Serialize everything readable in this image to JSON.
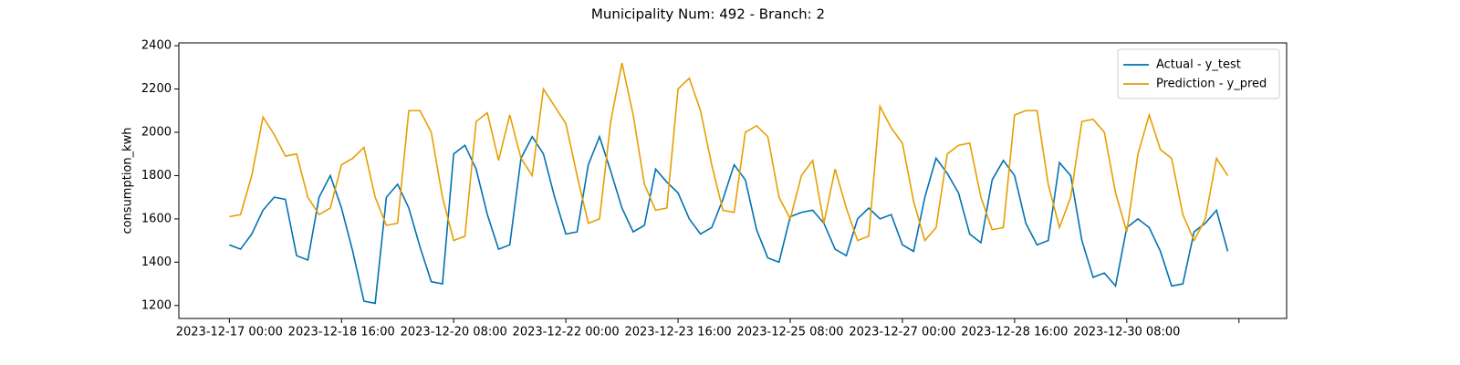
{
  "chart_data": {
    "type": "line",
    "title": "Municipality Num: 492 - Branch: 2",
    "ylabel": "consumption_kwh",
    "x": [
      "2023-12-17 00:00",
      "2023-12-17 04:00",
      "2023-12-17 08:00",
      "2023-12-17 12:00",
      "2023-12-17 16:00",
      "2023-12-17 20:00",
      "2023-12-18 00:00",
      "2023-12-18 04:00",
      "2023-12-18 08:00",
      "2023-12-18 12:00",
      "2023-12-18 16:00",
      "2023-12-18 20:00",
      "2023-12-19 00:00",
      "2023-12-19 04:00",
      "2023-12-19 08:00",
      "2023-12-19 12:00",
      "2023-12-19 16:00",
      "2023-12-19 20:00",
      "2023-12-20 00:00",
      "2023-12-20 04:00",
      "2023-12-20 08:00",
      "2023-12-20 12:00",
      "2023-12-20 16:00",
      "2023-12-20 20:00",
      "2023-12-21 00:00",
      "2023-12-21 04:00",
      "2023-12-21 08:00",
      "2023-12-21 12:00",
      "2023-12-21 16:00",
      "2023-12-21 20:00",
      "2023-12-22 00:00",
      "2023-12-22 04:00",
      "2023-12-22 08:00",
      "2023-12-22 12:00",
      "2023-12-22 16:00",
      "2023-12-22 20:00",
      "2023-12-23 00:00",
      "2023-12-23 04:00",
      "2023-12-23 08:00",
      "2023-12-23 12:00",
      "2023-12-23 16:00",
      "2023-12-23 20:00",
      "2023-12-24 00:00",
      "2023-12-24 04:00",
      "2023-12-24 08:00",
      "2023-12-24 12:00",
      "2023-12-24 16:00",
      "2023-12-24 20:00",
      "2023-12-25 00:00",
      "2023-12-25 04:00",
      "2023-12-25 08:00",
      "2023-12-25 12:00",
      "2023-12-25 16:00",
      "2023-12-25 20:00",
      "2023-12-26 00:00",
      "2023-12-26 04:00",
      "2023-12-26 08:00",
      "2023-12-26 12:00",
      "2023-12-26 16:00",
      "2023-12-26 20:00",
      "2023-12-27 00:00",
      "2023-12-27 04:00",
      "2023-12-27 08:00",
      "2023-12-27 12:00",
      "2023-12-27 16:00",
      "2023-12-27 20:00",
      "2023-12-28 00:00",
      "2023-12-28 04:00",
      "2023-12-28 08:00",
      "2023-12-28 12:00",
      "2023-12-28 16:00",
      "2023-12-28 20:00",
      "2023-12-29 00:00",
      "2023-12-29 04:00",
      "2023-12-29 08:00",
      "2023-12-29 12:00",
      "2023-12-29 16:00",
      "2023-12-29 20:00",
      "2023-12-30 00:00",
      "2023-12-30 04:00",
      "2023-12-30 08:00",
      "2023-12-30 12:00",
      "2023-12-30 16:00",
      "2023-12-30 20:00",
      "2023-12-31 00:00",
      "2023-12-31 04:00",
      "2023-12-31 08:00",
      "2023-12-31 12:00",
      "2023-12-31 16:00",
      "2023-12-31 20:00"
    ],
    "series": [
      {
        "name": "Actual - y_test",
        "color": "#0072b2",
        "values": [
          1480,
          1460,
          1530,
          1640,
          1700,
          1690,
          1430,
          1410,
          1700,
          1800,
          1650,
          1450,
          1220,
          1210,
          1700,
          1760,
          1650,
          1470,
          1310,
          1300,
          1900,
          1940,
          1830,
          1620,
          1460,
          1480,
          1880,
          1980,
          1900,
          1700,
          1530,
          1540,
          1850,
          1980,
          1820,
          1650,
          1540,
          1570,
          1830,
          1770,
          1720,
          1600,
          1530,
          1560,
          1690,
          1850,
          1780,
          1550,
          1420,
          1400,
          1610,
          1630,
          1640,
          1580,
          1460,
          1430,
          1600,
          1650,
          1600,
          1620,
          1480,
          1450,
          1700,
          1880,
          1810,
          1720,
          1530,
          1490,
          1780,
          1870,
          1800,
          1580,
          1480,
          1500,
          1860,
          1800,
          1500,
          1330,
          1350,
          1290,
          1560,
          1600,
          1560,
          1450,
          1290,
          1300,
          1540,
          1580,
          1640,
          1450
        ]
      },
      {
        "name": "Prediction - y_pred",
        "color": "#e69f00",
        "values": [
          1610,
          1620,
          1800,
          2070,
          1990,
          1890,
          1900,
          1700,
          1620,
          1650,
          1850,
          1880,
          1930,
          1700,
          1570,
          1580,
          2100,
          2100,
          2000,
          1700,
          1500,
          1520,
          2050,
          2090,
          1870,
          2080,
          1880,
          1800,
          2200,
          2120,
          2040,
          1800,
          1580,
          1600,
          2050,
          2320,
          2080,
          1760,
          1640,
          1650,
          2200,
          2250,
          2100,
          1850,
          1640,
          1630,
          2000,
          2030,
          1980,
          1700,
          1600,
          1800,
          1870,
          1580,
          1830,
          1650,
          1500,
          1520,
          2120,
          2020,
          1950,
          1680,
          1500,
          1560,
          1900,
          1940,
          1950,
          1700,
          1550,
          1560,
          2080,
          2100,
          2100,
          1760,
          1560,
          1700,
          2050,
          2060,
          2000,
          1720,
          1540,
          1900,
          2080,
          1920,
          1880,
          1620,
          1500,
          1600,
          1880,
          1800
        ]
      }
    ],
    "xlim": [
      "2023-12-16 06:00",
      "2024-01-01 17:00"
    ],
    "xticks": [
      "2023-12-17 00:00",
      "2023-12-18 16:00",
      "2023-12-20 08:00",
      "2023-12-22 00:00",
      "2023-12-23 16:00",
      "2023-12-25 08:00",
      "2023-12-27 00:00",
      "2023-12-28 16:00",
      "2023-12-30 08:00",
      {
        "value": "2024-01-01 00:00",
        "label": null
      }
    ],
    "ylim": [
      1140,
      2413
    ],
    "yticks": [
      1200,
      1400,
      1600,
      1800,
      2000,
      2200,
      2400
    ],
    "legend": "upper right"
  }
}
